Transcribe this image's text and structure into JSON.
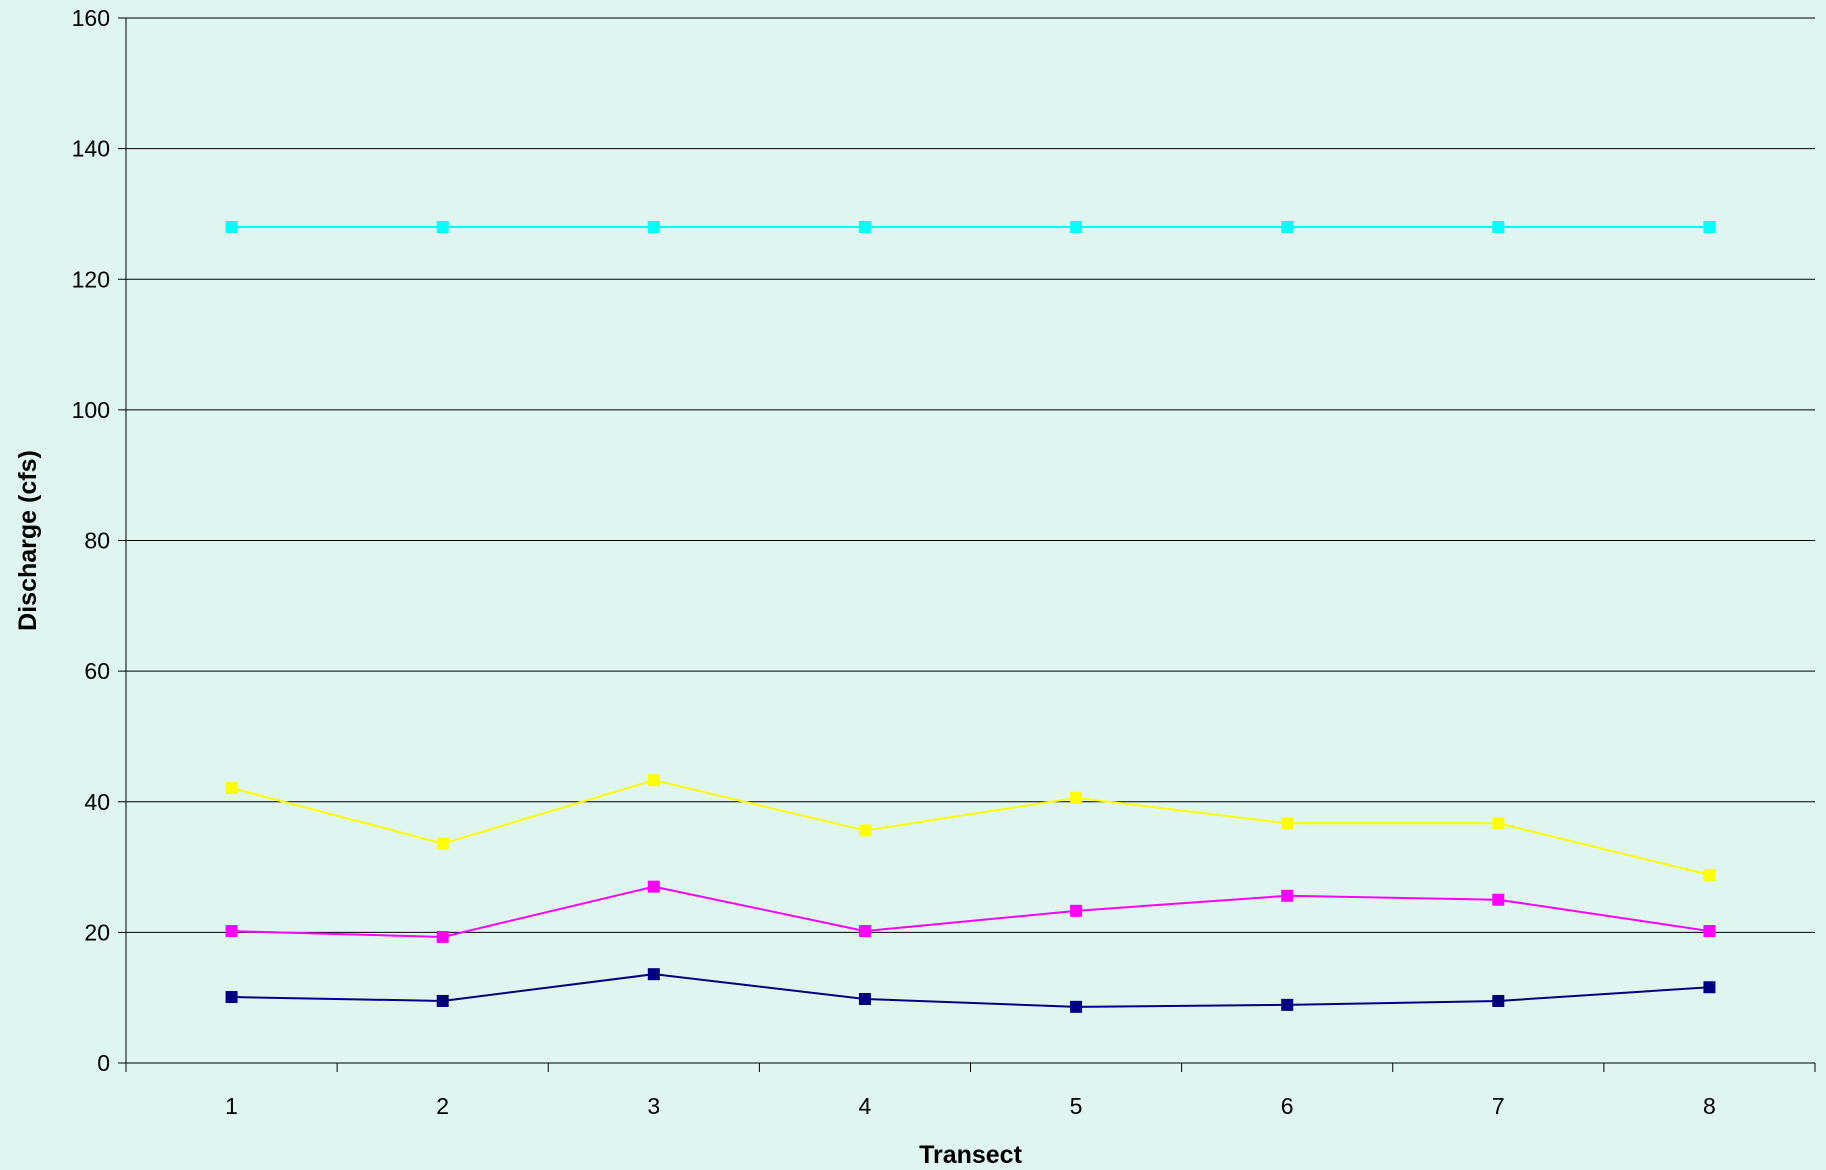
{
  "chart_data": {
    "type": "line",
    "title": "",
    "xlabel": "Transect",
    "ylabel": "Discharge (cfs)",
    "x": [
      1,
      2,
      3,
      4,
      5,
      6,
      7,
      8
    ],
    "xlim": [
      0.5,
      8.5
    ],
    "ylim": [
      0,
      160
    ],
    "yticks": [
      0,
      20,
      40,
      60,
      80,
      100,
      120,
      140,
      160
    ],
    "grid": "horizontal",
    "legend": "none",
    "background_color": "#dff5f0",
    "series": [
      {
        "color": "#00ffff",
        "marker": "square",
        "values": [
          128,
          128,
          128,
          128,
          128,
          128,
          128,
          128
        ]
      },
      {
        "color": "#ffff00",
        "marker": "square",
        "values": [
          42.1,
          33.6,
          43.3,
          35.6,
          40.6,
          36.7,
          36.7,
          28.8
        ]
      },
      {
        "color": "#ff00ff",
        "marker": "square",
        "values": [
          20.2,
          19.3,
          27.0,
          20.2,
          23.3,
          25.6,
          25.0,
          20.2
        ]
      },
      {
        "color": "#000080",
        "marker": "square",
        "values": [
          10.1,
          9.5,
          13.6,
          9.8,
          8.6,
          8.9,
          9.5,
          11.6
        ]
      }
    ]
  }
}
